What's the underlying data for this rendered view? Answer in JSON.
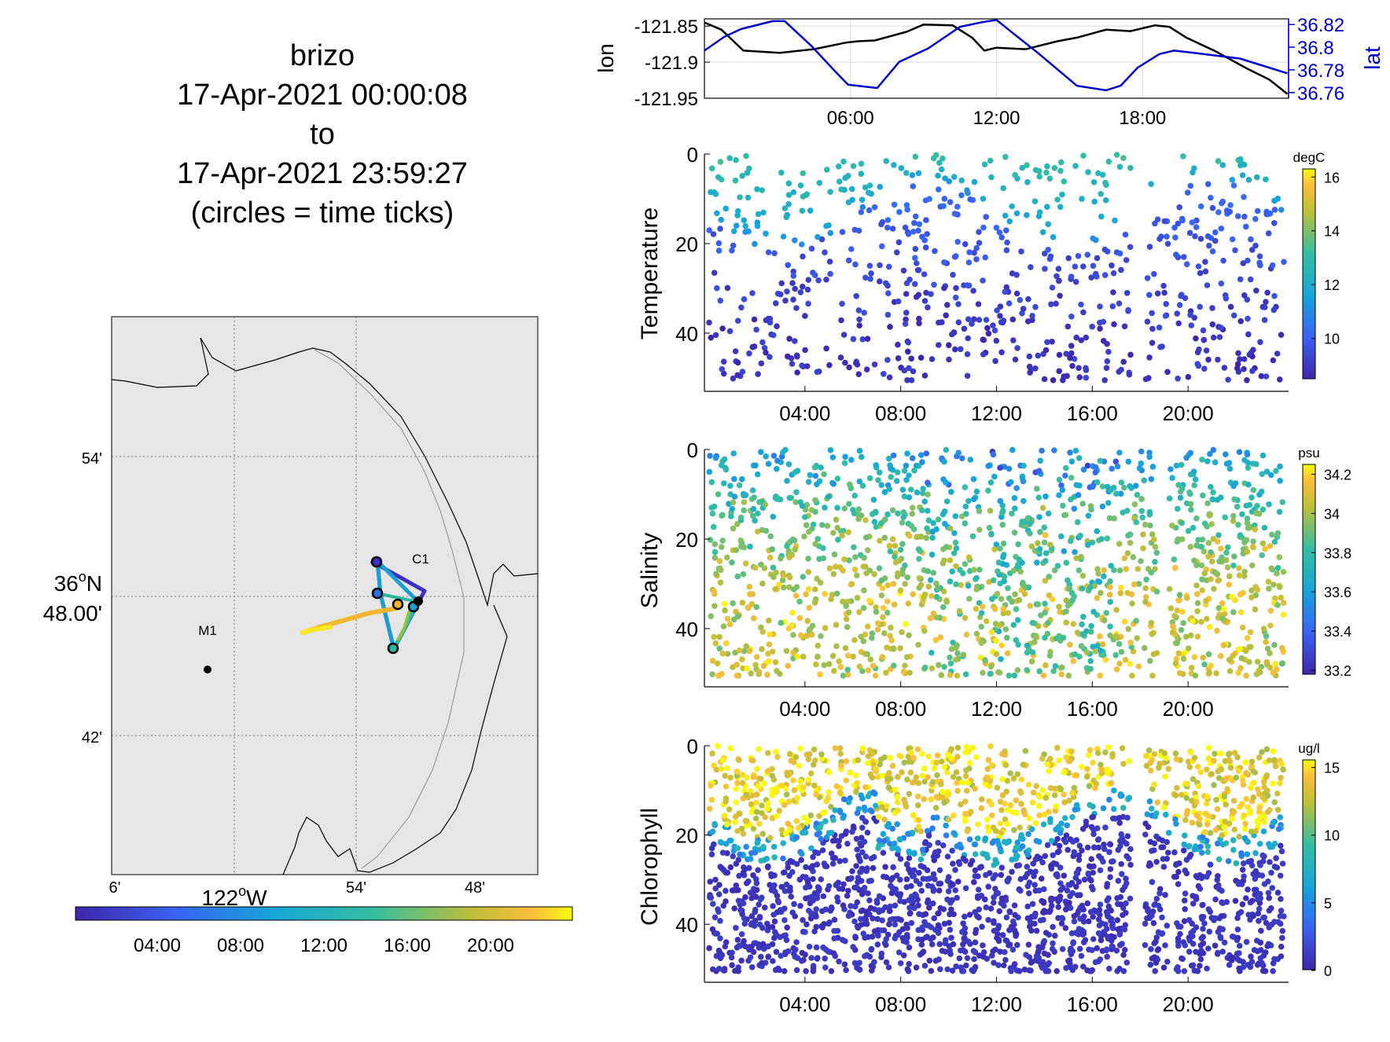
{
  "title_lines": [
    "brizo",
    "17-Apr-2021 00:00:08",
    "to",
    "17-Apr-2021 23:59:27",
    "(circles = time ticks)"
  ],
  "colors": {
    "land": "#e6e6e6",
    "lon_line": "#000000",
    "lat_line": "#0000cc",
    "axis": "#000000",
    "grid": "#d9d9d9"
  },
  "map": {
    "lat_labels": [
      "54'",
      "36°N",
      "48.00'",
      "42'"
    ],
    "lat_deg_main": "36",
    "lat_deg_symbol": "o",
    "lat_deg_suffix": "N",
    "lon_labels": [
      "6'",
      "54'",
      "48'"
    ],
    "lon_main_num": "122",
    "lon_main_symbol": "o",
    "lon_main_suffix": "W",
    "stations": [
      {
        "name": "M1"
      },
      {
        "name": "C1"
      }
    ],
    "colorbar_ticks": [
      "04:00",
      "08:00",
      "12:00",
      "16:00",
      "20:00"
    ]
  },
  "chart_data": [
    {
      "type": "line",
      "id": "position",
      "ylabel": "lon",
      "y2label": "lat",
      "x_ticks": [
        "06:00",
        "12:00",
        "18:00"
      ],
      "x_range_hours": [
        0,
        24
      ],
      "ylim": [
        -121.95,
        -121.84
      ],
      "y_ticks": [
        "-121.85",
        "-121.9",
        "-121.95"
      ],
      "y2lim": [
        36.755,
        36.825
      ],
      "y2_ticks": [
        "36.82",
        "36.8",
        "36.78",
        "36.76"
      ],
      "series": [
        {
          "name": "lon",
          "axis": "left",
          "x": [
            0,
            0.7,
            1.6,
            3.1,
            4.5,
            5.8,
            6.3,
            7.0,
            8.3,
            9.0,
            10.2,
            11.0,
            11.5,
            12.0,
            13.2,
            14.5,
            15.3,
            16.5,
            17.5,
            18.5,
            19.1,
            19.8,
            21.0,
            22.3,
            23.2,
            23.95
          ],
          "values": [
            -121.845,
            -121.855,
            -121.884,
            -121.887,
            -121.882,
            -121.873,
            -121.871,
            -121.87,
            -121.858,
            -121.848,
            -121.849,
            -121.866,
            -121.884,
            -121.88,
            -121.882,
            -121.871,
            -121.866,
            -121.855,
            -121.857,
            -121.849,
            -121.851,
            -121.866,
            -121.885,
            -121.909,
            -121.924,
            -121.944
          ]
        },
        {
          "name": "lat",
          "axis": "right",
          "x": [
            0,
            0.8,
            1.5,
            2.8,
            3.3,
            4.4,
            5.4,
            5.9,
            6.7,
            7.1,
            8.0,
            9.2,
            10.5,
            11.4,
            12.0,
            12.7,
            13.7,
            15.3,
            16.5,
            17.1,
            17.8,
            18.7,
            19.3,
            20.5,
            22.0,
            23.95
          ],
          "values": [
            36.797,
            36.809,
            36.816,
            36.823,
            36.823,
            36.801,
            36.778,
            36.767,
            36.765,
            36.764,
            36.787,
            36.799,
            36.818,
            36.822,
            36.824,
            36.812,
            36.795,
            36.766,
            36.762,
            36.766,
            36.782,
            36.794,
            36.797,
            36.794,
            36.79,
            36.777
          ]
        }
      ]
    },
    {
      "type": "scatter",
      "id": "temperature",
      "ylabel": "Temperature",
      "cbar_label": "degC",
      "x_ticks": [
        "04:00",
        "08:00",
        "12:00",
        "16:00",
        "20:00"
      ],
      "y_ticks": [
        "0",
        "20",
        "40"
      ],
      "ylim": [
        0,
        53
      ],
      "clim": [
        8.5,
        16.3
      ],
      "cbar_ticks": [
        "16",
        "14",
        "12",
        "10"
      ],
      "points": 760,
      "gap_hours": [
        [
          17.6,
          18.2
        ],
        [
          19.2,
          19.4
        ]
      ]
    },
    {
      "type": "scatter",
      "id": "salinity",
      "ylabel": "Salinity",
      "cbar_label": "psu",
      "x_ticks": [
        "04:00",
        "08:00",
        "12:00",
        "16:00",
        "20:00"
      ],
      "y_ticks": [
        "0",
        "20",
        "40"
      ],
      "ylim": [
        0,
        53
      ],
      "clim": [
        33.18,
        34.25
      ],
      "cbar_ticks": [
        "34.2",
        "34",
        "33.8",
        "33.6",
        "33.4",
        "33.2"
      ],
      "points": 1500,
      "gap_hours": [
        [
          18.7,
          19.2
        ]
      ]
    },
    {
      "type": "scatter",
      "id": "chlorophyll",
      "ylabel": "Chlorophyll",
      "cbar_label": "ug/l",
      "x_ticks": [
        "04:00",
        "08:00",
        "12:00",
        "16:00",
        "20:00"
      ],
      "y_ticks": [
        "0",
        "20",
        "40"
      ],
      "ylim": [
        0,
        53
      ],
      "clim": [
        0,
        15.5
      ],
      "cbar_ticks": [
        "15",
        "10",
        "5",
        "0"
      ],
      "points": 2400,
      "gap_hours": [
        [
          17.6,
          18.2
        ],
        [
          19.2,
          19.4
        ]
      ]
    }
  ]
}
